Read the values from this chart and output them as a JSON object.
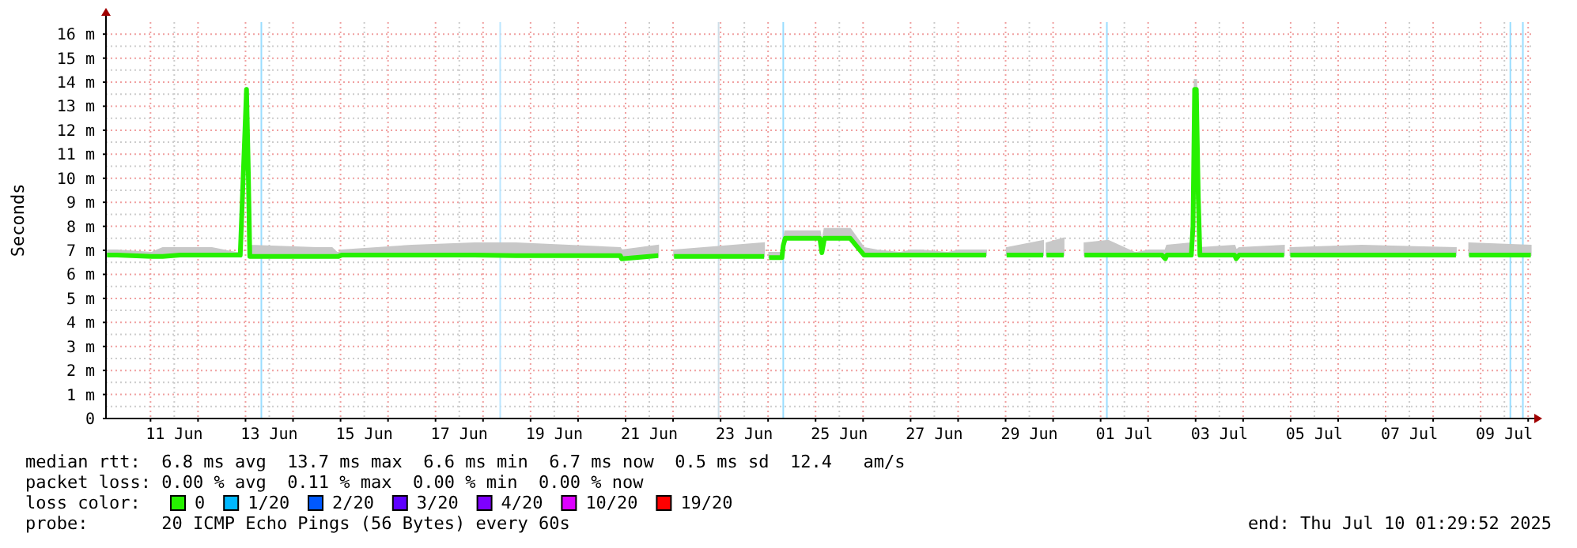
{
  "chart_data": {
    "type": "line",
    "ylabel": "Seconds",
    "xlim": [
      "2025-06-10T01:30",
      "2025-07-10T01:30"
    ],
    "xticks": [
      {
        "value": "2025-06-11T00:00",
        "label": null
      },
      {
        "value": "2025-06-11T12:00",
        "label": "11 Jun"
      },
      {
        "value": "2025-06-12T00:00",
        "label": null
      },
      {
        "value": "2025-06-13T00:00",
        "label": null
      },
      {
        "value": "2025-06-13T12:00",
        "label": "13 Jun"
      },
      {
        "value": "2025-06-14T00:00",
        "label": null
      },
      {
        "value": "2025-06-15T00:00",
        "label": null
      },
      {
        "value": "2025-06-15T12:00",
        "label": "15 Jun"
      },
      {
        "value": "2025-06-16T00:00",
        "label": null
      },
      {
        "value": "2025-06-17T00:00",
        "label": null
      },
      {
        "value": "2025-06-17T12:00",
        "label": "17 Jun"
      },
      {
        "value": "2025-06-18T00:00",
        "label": null
      },
      {
        "value": "2025-06-19T00:00",
        "label": null
      },
      {
        "value": "2025-06-19T12:00",
        "label": "19 Jun"
      },
      {
        "value": "2025-06-20T00:00",
        "label": null
      },
      {
        "value": "2025-06-21T00:00",
        "label": null
      },
      {
        "value": "2025-06-21T12:00",
        "label": "21 Jun"
      },
      {
        "value": "2025-06-22T00:00",
        "label": null
      },
      {
        "value": "2025-06-23T00:00",
        "label": null
      },
      {
        "value": "2025-06-23T12:00",
        "label": "23 Jun"
      },
      {
        "value": "2025-06-24T00:00",
        "label": null
      },
      {
        "value": "2025-06-25T00:00",
        "label": null
      },
      {
        "value": "2025-06-25T12:00",
        "label": "25 Jun"
      },
      {
        "value": "2025-06-26T00:00",
        "label": null
      },
      {
        "value": "2025-06-27T00:00",
        "label": null
      },
      {
        "value": "2025-06-27T12:00",
        "label": "27 Jun"
      },
      {
        "value": "2025-06-28T00:00",
        "label": null
      },
      {
        "value": "2025-06-29T00:00",
        "label": null
      },
      {
        "value": "2025-06-29T12:00",
        "label": "29 Jun"
      },
      {
        "value": "2025-06-30T00:00",
        "label": null
      },
      {
        "value": "2025-07-01T00:00",
        "label": null
      },
      {
        "value": "2025-07-01T12:00",
        "label": "01 Jul"
      },
      {
        "value": "2025-07-02T00:00",
        "label": null
      },
      {
        "value": "2025-07-03T00:00",
        "label": null
      },
      {
        "value": "2025-07-03T12:00",
        "label": "03 Jul"
      },
      {
        "value": "2025-07-04T00:00",
        "label": null
      },
      {
        "value": "2025-07-05T00:00",
        "label": null
      },
      {
        "value": "2025-07-05T12:00",
        "label": "05 Jul"
      },
      {
        "value": "2025-07-06T00:00",
        "label": null
      },
      {
        "value": "2025-07-07T00:00",
        "label": null
      },
      {
        "value": "2025-07-07T12:00",
        "label": "07 Jul"
      },
      {
        "value": "2025-07-08T00:00",
        "label": null
      },
      {
        "value": "2025-07-09T00:00",
        "label": null
      },
      {
        "value": "2025-07-09T12:00",
        "label": "09 Jul"
      },
      {
        "value": "2025-07-10T00:00",
        "label": null
      }
    ],
    "ylim": [
      0,
      16.5
    ],
    "yticks": [
      0,
      {
        "value": 1,
        "label": "1 m"
      },
      {
        "value": 2,
        "label": "2 m"
      },
      {
        "value": 3,
        "label": "3 m"
      },
      {
        "value": 4,
        "label": "4 m"
      },
      {
        "value": 5,
        "label": "5 m"
      },
      {
        "value": 6,
        "label": "6 m"
      },
      {
        "value": 7,
        "label": "7 m"
      },
      {
        "value": 8,
        "label": "8 m"
      },
      {
        "value": 9,
        "label": "9 m"
      },
      {
        "value": 10,
        "label": "10 m"
      },
      {
        "value": 11,
        "label": "11 m"
      },
      {
        "value": 12,
        "label": "12 m"
      },
      {
        "value": 13,
        "label": "13 m"
      },
      {
        "value": 14,
        "label": "14 m"
      },
      {
        "value": 15,
        "label": "15 m"
      },
      {
        "value": 16,
        "label": "16 m"
      }
    ],
    "grid": true,
    "legend": "bottom",
    "legend_title": "loss color:",
    "ref_lines": [
      {
        "axis": "x",
        "value": "2025-06-13T08:00",
        "color": "#99ddff"
      },
      {
        "axis": "x",
        "value": "2025-06-18T08:40",
        "color": "#bbe6ff"
      },
      {
        "axis": "x",
        "value": "2025-06-22T23:00",
        "color": "#cfdfe8"
      },
      {
        "axis": "x",
        "value": "2025-06-24T07:40",
        "color": "#99ddff"
      },
      {
        "axis": "x",
        "value": "2025-07-01T03:10",
        "color": "#99ddff"
      },
      {
        "axis": "x",
        "value": "2025-07-09T15:00",
        "color": "#99ddff"
      },
      {
        "axis": "x",
        "value": "2025-07-09T21:20",
        "color": "#99ddff"
      }
    ],
    "series": [
      {
        "name": "0",
        "color": "#26f000",
        "x": [
          "2025-06-10T02:00",
          "2025-06-10T04:30",
          "2025-06-10T07:00",
          "2025-06-11T00:30",
          "2025-06-11T03:20",
          "2025-06-11T06:10",
          "2025-06-11T15:00",
          "2025-06-12T07:00",
          "2025-06-12T19:00",
          "2025-06-12T20:10",
          "2025-06-12T21:20",
          "2025-06-13T00:30",
          "2025-06-13T01:20",
          "2025-06-13T02:10",
          "2025-06-14T12:00",
          "2025-06-14T19:40",
          "2025-06-14T22:10",
          "2025-06-14T22:35",
          "2025-06-14T23:00",
          "2025-06-15T00:30",
          "2025-06-16T12:00",
          "2025-06-17T19:40",
          "2025-06-18T16:30",
          "2025-06-20T21:20",
          "2025-06-20T22:00",
          "2025-06-21T16:30",
          "2025-06-21T20:00",
          "2025-06-22T00:30",
          "2025-06-23T22:00",
          "2025-06-23T23:00",
          "2025-06-24T00:30",
          "2025-06-24T07:00",
          "2025-06-24T07:40",
          "2025-06-24T08:40",
          "2025-06-25T02:10",
          "2025-06-25T03:10",
          "2025-06-25T04:30",
          "2025-06-25T12:30",
          "2025-06-25T16:30",
          "2025-06-25T17:00",
          "2025-06-25T17:30",
          "2025-06-26T00:30",
          "2025-06-26T07:00",
          "2025-06-26T18:10",
          "2025-06-26T18:35",
          "2025-06-26T19:00",
          "2025-06-27T00:30",
          "2025-06-27T02:50",
          "2025-06-27T05:20",
          "2025-06-27T18:10",
          "2025-06-27T18:35",
          "2025-06-27T19:00",
          "2025-06-28T00:30",
          "2025-06-28T14:10",
          "2025-06-28T20:00",
          "2025-06-29T00:30",
          "2025-06-29T19:00",
          "2025-06-29T19:40",
          "2025-06-29T20:40",
          "2025-06-30T05:20",
          "2025-06-30T12:00",
          "2025-06-30T15:50",
          "2025-07-01T03:50",
          "2025-07-01T17:20",
          "2025-07-01T17:50",
          "2025-07-01T18:20",
          "2025-07-02T00:30",
          "2025-07-02T07:00",
          "2025-07-02T08:40",
          "2025-07-02T09:30",
          "2025-07-02T21:50",
          "2025-07-02T22:40",
          "2025-07-02T23:30",
          "2025-07-03T00:20",
          "2025-07-03T01:20",
          "2025-07-03T02:10",
          "2025-07-03T19:40",
          "2025-07-03T20:30",
          "2025-07-03T22:00",
          "2025-07-04T20:40",
          "2025-07-04T22:00",
          "2025-07-04T23:50",
          "2025-07-06T12:00",
          "2025-07-08T11:30",
          "2025-07-08T15:00",
          "2025-07-08T18:10",
          "2025-07-10T01:20"
        ],
        "values": [
          6.8,
          6.8,
          6.8,
          6.75,
          6.75,
          6.75,
          6.8,
          6.8,
          6.8,
          6.8,
          6.8,
          13.7,
          10.6,
          6.75,
          6.75,
          6.75,
          6.75,
          6.75,
          6.75,
          6.8,
          6.8,
          6.8,
          6.78,
          6.78,
          6.65,
          6.78,
          null,
          6.75,
          6.75,
          null,
          6.7,
          6.7,
          7.2,
          7.5,
          7.5,
          6.9,
          7.5,
          7.5,
          7.5,
          7.5,
          7.5,
          6.8,
          6.8,
          6.8,
          6.8,
          6.8,
          6.8,
          6.8,
          6.8,
          6.8,
          6.8,
          6.8,
          6.8,
          6.8,
          null,
          6.8,
          6.8,
          null,
          6.8,
          6.8,
          null,
          6.8,
          6.8,
          6.8,
          6.8,
          6.8,
          6.8,
          6.8,
          6.65,
          6.8,
          6.8,
          8.0,
          13.7,
          13.7,
          9.2,
          6.8,
          6.8,
          6.65,
          6.8,
          6.8,
          null,
          6.8,
          6.8,
          6.8,
          null,
          6.8,
          6.8
        ],
        "lower": [
          6.8,
          6.8,
          6.8,
          6.75,
          6.75,
          6.75,
          6.8,
          6.8,
          6.8,
          6.8,
          6.8,
          13.7,
          10.6,
          6.75,
          6.75,
          6.75,
          6.75,
          6.75,
          6.75,
          6.8,
          6.8,
          6.8,
          6.78,
          6.78,
          6.65,
          6.78,
          null,
          6.75,
          6.75,
          null,
          6.7,
          6.7,
          7.2,
          7.5,
          7.5,
          6.9,
          7.5,
          7.5,
          7.5,
          7.5,
          7.5,
          6.8,
          6.8,
          6.8,
          6.8,
          6.8,
          6.8,
          6.8,
          6.8,
          6.8,
          6.8,
          6.8,
          6.8,
          6.8,
          null,
          6.8,
          6.8,
          null,
          6.8,
          6.8,
          null,
          6.8,
          6.8,
          6.8,
          6.8,
          6.8,
          6.8,
          6.8,
          6.65,
          6.8,
          6.8,
          8.0,
          13.7,
          13.7,
          9.2,
          6.8,
          6.8,
          6.65,
          6.8,
          6.8,
          null,
          6.8,
          6.8,
          6.8,
          null,
          6.8,
          6.8
        ],
        "upper": [
          7.0,
          7.0,
          7.0,
          6.9,
          7.0,
          7.1,
          7.1,
          7.1,
          6.9,
          6.9,
          6.9,
          13.8,
          10.7,
          7.2,
          7.1,
          7.1,
          6.9,
          6.9,
          6.9,
          7.0,
          7.2,
          7.3,
          7.3,
          7.1,
          7.0,
          7.2,
          null,
          7.0,
          7.3,
          null,
          6.9,
          6.9,
          7.4,
          7.8,
          7.8,
          7.3,
          7.9,
          7.9,
          7.9,
          7.9,
          7.9,
          7.1,
          7.0,
          6.9,
          6.9,
          6.9,
          7.0,
          7.0,
          7.0,
          6.9,
          6.9,
          6.9,
          7.0,
          7.0,
          null,
          7.1,
          7.4,
          null,
          7.3,
          7.5,
          null,
          7.3,
          7.4,
          6.9,
          6.9,
          6.9,
          7.0,
          7.0,
          7.0,
          7.2,
          7.3,
          8.2,
          14.1,
          14.1,
          9.4,
          7.1,
          7.2,
          7.0,
          7.1,
          7.2,
          null,
          7.1,
          7.2,
          7.1,
          null,
          7.3,
          7.2
        ]
      },
      {
        "name": "1/20",
        "color": "#00b8ff"
      },
      {
        "name": "2/20",
        "color": "#0059ff"
      },
      {
        "name": "3/20",
        "color": "#5e00ff"
      },
      {
        "name": "4/20",
        "color": "#7e00ff"
      },
      {
        "name": "10/20",
        "color": "#dd00ff"
      },
      {
        "name": "19/20",
        "color": "#ff0000"
      }
    ],
    "annotations": [
      "median rtt:  6.8 ms avg  13.7 ms max  6.6 ms min  6.7 ms now  0.5 ms sd  12.4   am/s",
      "packet loss: 0.00 % avg  0.11 % max  0.00 % min  0.00 % now",
      "probe:       20 ICMP Echo Pings (56 Bytes) every 60s",
      "end: Thu Jul 10 01:29:52 2025"
    ]
  }
}
